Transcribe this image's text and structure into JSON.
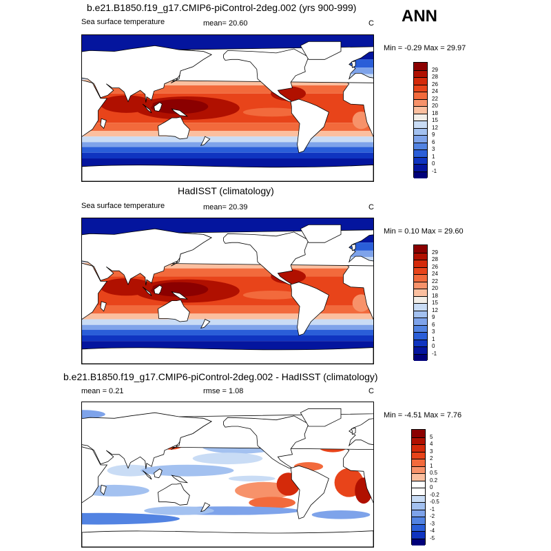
{
  "season": "ANN",
  "panels": [
    {
      "title": "b.e21.B1850.f19_g17.CMIP6-piControl-2deg.002 (yrs 900-999)",
      "left_label": "Sea surface temperature",
      "center_label": "mean=  20.60",
      "units": "C",
      "minmax": "Min =  -0.29 Max =  29.97"
    },
    {
      "title": "HadISST (climatology)",
      "left_label": "Sea surface temperature",
      "center_label": "mean=  20.39",
      "units": "C",
      "minmax": "Min =  0.10 Max =  29.60"
    },
    {
      "title": "b.e21.B1850.f19_g17.CMIP6-piControl-2deg.002 - HadISST (climatology)",
      "left_label": "mean =   0.21",
      "center_label": "rmse =   1.08",
      "units": "C",
      "minmax": "Min =  -4.51 Max =   7.76"
    }
  ],
  "colorbars": {
    "sst": {
      "levels": [
        "29",
        "28",
        "26",
        "24",
        "22",
        "20",
        "18",
        "15",
        "12",
        "9",
        "6",
        "3",
        "1",
        "0",
        "-1"
      ],
      "colors": [
        "#8b0000",
        "#b01000",
        "#d42a0a",
        "#e8441a",
        "#f26a3c",
        "#f7926a",
        "#fbbf9f",
        "#f2eee8",
        "#c9dcf5",
        "#a3c1f0",
        "#7ea3ea",
        "#5283e2",
        "#2a5ed8",
        "#0f34c0",
        "#04159e",
        "#00007a"
      ]
    },
    "diff": {
      "levels": [
        "5",
        "4",
        "3",
        "2",
        "1",
        "0.5",
        "0.2",
        "0",
        "-0.2",
        "-0.5",
        "-1",
        "-2",
        "-3",
        "-4",
        "-5"
      ],
      "colors": [
        "#8b0000",
        "#b01000",
        "#d42a0a",
        "#e8441a",
        "#f26a3c",
        "#f7926a",
        "#fbbf9f",
        "#ffffff",
        "#ffffff",
        "#c9dcf5",
        "#a3c1f0",
        "#7ea3ea",
        "#5283e2",
        "#2a5ed8",
        "#0f34c0",
        "#00007a"
      ]
    }
  }
}
